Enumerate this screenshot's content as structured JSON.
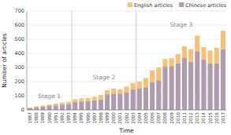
{
  "chart_data": {
    "type": "bar",
    "stacked": true,
    "xlabel": "Time",
    "ylabel": "Number of articles",
    "categories": [
      "1987",
      "1988",
      "1989",
      "1990",
      "1991",
      "1992",
      "1993",
      "1994",
      "1995",
      "1996",
      "1997",
      "1998",
      "1999",
      "2000",
      "2001",
      "2002",
      "2003",
      "2004",
      "2005",
      "2006",
      "2007",
      "2008",
      "2009",
      "2010",
      "2011",
      "2012",
      "2013",
      "2014",
      "2015",
      "2016",
      "2017"
    ],
    "series": [
      {
        "name": "Chinese articles",
        "color": "#b09aab",
        "values": [
          12,
          20,
          22,
          28,
          32,
          38,
          42,
          55,
          60,
          62,
          68,
          75,
          110,
          115,
          115,
          125,
          145,
          150,
          160,
          195,
          210,
          305,
          310,
          330,
          370,
          340,
          415,
          355,
          330,
          330,
          430
        ]
      },
      {
        "name": "English articles",
        "color": "#f5c07a",
        "values": [
          5,
          6,
          8,
          10,
          12,
          12,
          15,
          20,
          22,
          22,
          25,
          30,
          30,
          35,
          30,
          40,
          45,
          50,
          65,
          85,
          90,
          55,
          55,
          65,
          80,
          90,
          110,
          90,
          90,
          110,
          130
        ]
      }
    ],
    "annotations": [
      {
        "text": "Stage 1",
        "start": "1987",
        "end": "1993"
      },
      {
        "text": "Stage 2",
        "start": "1994",
        "end": "2003"
      },
      {
        "text": "Stage 3",
        "start": "2004",
        "end": "2017"
      }
    ],
    "ylim": [
      0,
      700
    ],
    "yticks": [
      0,
      100,
      200,
      300,
      400,
      500,
      600,
      700
    ],
    "grid": true,
    "legend": "upper right"
  }
}
